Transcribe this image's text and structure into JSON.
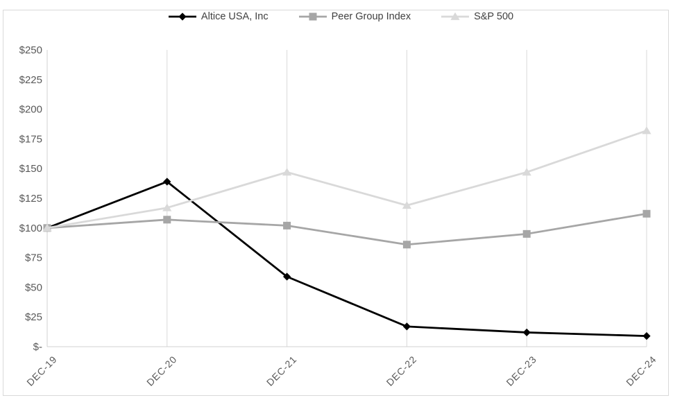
{
  "chart_data": {
    "type": "line",
    "title": "",
    "xlabel": "",
    "ylabel": "",
    "categories": [
      "DEC-19",
      "DEC-20",
      "DEC-21",
      "DEC-22",
      "DEC-23",
      "DEC-24"
    ],
    "series": [
      {
        "name": "Altice USA, Inc",
        "marker": "diamond",
        "color": "#000000",
        "values": [
          100,
          139,
          59,
          17,
          12,
          9
        ]
      },
      {
        "name": "Peer Group Index",
        "marker": "square",
        "color": "#a6a6a6",
        "values": [
          100,
          107,
          102,
          86,
          95,
          112
        ]
      },
      {
        "name": "S&P 500",
        "marker": "triangle",
        "color": "#d9d9d9",
        "values": [
          100,
          117,
          147,
          119,
          147,
          182
        ]
      }
    ],
    "draw_order_note": "series drawn in listed order; later series paint on top",
    "y_ticks": [
      {
        "label": "$250",
        "value": 250
      },
      {
        "label": "$225",
        "value": 225
      },
      {
        "label": "$200",
        "value": 200
      },
      {
        "label": "$175",
        "value": 175
      },
      {
        "label": "$150",
        "value": 150
      },
      {
        "label": "$125",
        "value": 125
      },
      {
        "label": "$100",
        "value": 100
      },
      {
        "label": "$75",
        "value": 75
      },
      {
        "label": "$50",
        "value": 50
      },
      {
        "label": "$25",
        "value": 25
      },
      {
        "label": "$-",
        "value": 0
      }
    ],
    "ylim": [
      0,
      250
    ],
    "grid": "vertical-only",
    "legend_position": "top-center",
    "colors": {
      "gridline": "#d9d9d9",
      "axis_line": "#d0d0d0",
      "tick_label": "#595959",
      "legend_text": "#404040",
      "frame_border": "#d9d9d9",
      "background": "#ffffff"
    }
  }
}
